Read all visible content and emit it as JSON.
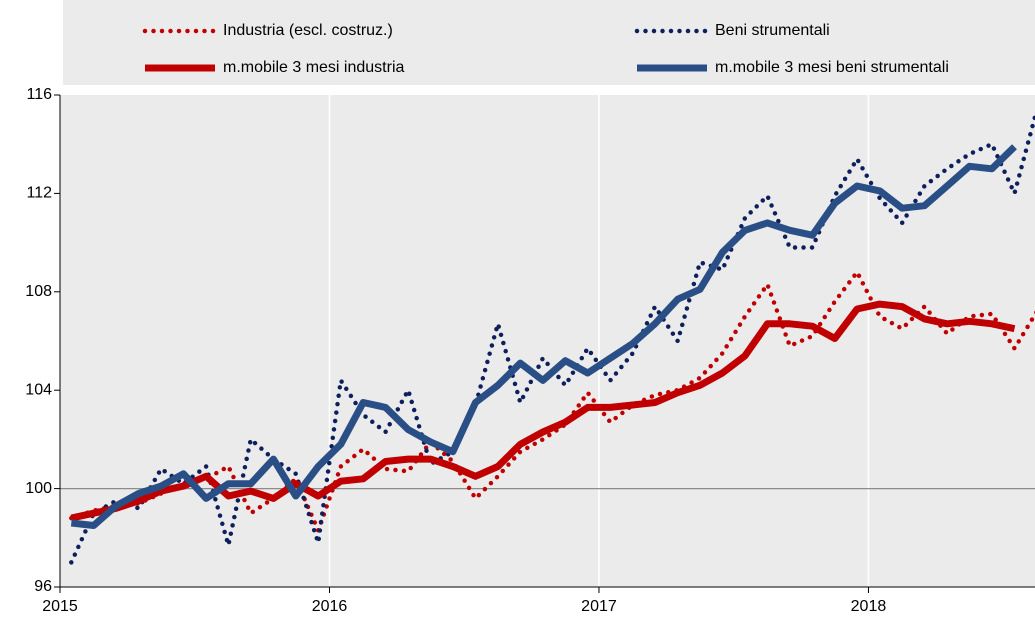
{
  "chart_data": {
    "type": "line",
    "x": [
      2015.042,
      2015.125,
      2015.208,
      2015.292,
      2015.375,
      2015.458,
      2015.542,
      2015.625,
      2015.708,
      2015.792,
      2015.875,
      2015.958,
      2016.042,
      2016.125,
      2016.208,
      2016.292,
      2016.375,
      2016.458,
      2016.542,
      2016.625,
      2016.708,
      2016.792,
      2016.875,
      2016.958,
      2017.042,
      2017.125,
      2017.208,
      2017.292,
      2017.375,
      2017.458,
      2017.542,
      2017.625,
      2017.708,
      2017.792,
      2017.875,
      2017.958,
      2018.042,
      2018.125,
      2018.208,
      2018.292,
      2018.375,
      2018.458,
      2018.542,
      2018.625
    ],
    "xlim": [
      2015,
      2018.618
    ],
    "xticks": [
      2015,
      2016,
      2017,
      2018
    ],
    "ylim": [
      96,
      116
    ],
    "yticks": [
      96,
      100,
      104,
      108,
      112,
      116
    ],
    "reference_line": 100,
    "grid": true,
    "series": [
      {
        "name": "Industria (escl. costruz.)",
        "color": "#c00000",
        "style": "dotted",
        "values": [
          98.8,
          99.1,
          99.3,
          99.4,
          99.8,
          100.2,
          100.4,
          100.9,
          99.0,
          99.6,
          100.4,
          98.3,
          100.9,
          101.6,
          100.8,
          100.7,
          101.9,
          101.1,
          99.6,
          100.5,
          101.5,
          102.0,
          102.6,
          103.9,
          102.7,
          103.4,
          103.8,
          104.0,
          104.5,
          105.5,
          107.0,
          108.3,
          105.8,
          106.2,
          107.6,
          108.8,
          107.0,
          106.5,
          107.4,
          106.3,
          107.0,
          107.1,
          105.7,
          107.2
        ]
      },
      {
        "name": "Beni strumentali",
        "color": "#0d1f5c",
        "style": "dotted",
        "values": [
          97.0,
          99.0,
          99.5,
          99.2,
          100.8,
          100.2,
          100.9,
          97.7,
          102.0,
          101.2,
          100.6,
          97.8,
          104.4,
          103.0,
          102.3,
          104.0,
          101.0,
          101.5,
          103.4,
          106.7,
          103.5,
          105.3,
          104.2,
          105.7,
          104.4,
          105.5,
          107.4,
          106.0,
          109.2,
          108.9,
          111.0,
          111.9,
          109.8,
          109.8,
          111.9,
          113.4,
          111.8,
          110.8,
          112.3,
          113.0,
          113.6,
          114.0,
          112.0,
          115.4
        ]
      },
      {
        "name": "m.mobile 3 mesi industria",
        "color": "#c00000",
        "style": "solid",
        "values": [
          98.8,
          99.0,
          99.2,
          99.5,
          99.9,
          100.1,
          100.5,
          99.7,
          99.9,
          99.6,
          100.2,
          99.7,
          100.3,
          100.4,
          101.1,
          101.2,
          101.2,
          100.9,
          100.5,
          100.9,
          101.8,
          102.3,
          102.7,
          103.3,
          103.3,
          103.4,
          103.5,
          103.9,
          104.2,
          104.7,
          105.4,
          106.7,
          106.7,
          106.6,
          106.1,
          107.3,
          107.5,
          107.4,
          106.9,
          106.7,
          106.8,
          106.7,
          106.5,
          null
        ]
      },
      {
        "name": "m.mobile 3 mesi beni strumentali",
        "color": "#2a4f86",
        "style": "solid",
        "values": [
          98.6,
          98.5,
          99.3,
          99.8,
          100.1,
          100.6,
          99.6,
          100.2,
          100.2,
          101.2,
          99.7,
          100.9,
          101.8,
          103.5,
          103.3,
          102.4,
          101.9,
          101.5,
          103.5,
          104.2,
          105.1,
          104.4,
          105.2,
          104.7,
          105.3,
          105.9,
          106.7,
          107.7,
          108.1,
          109.6,
          110.5,
          110.8,
          110.5,
          110.3,
          111.6,
          112.3,
          112.1,
          111.4,
          111.5,
          112.3,
          113.1,
          113.0,
          113.9,
          null
        ]
      }
    ]
  }
}
